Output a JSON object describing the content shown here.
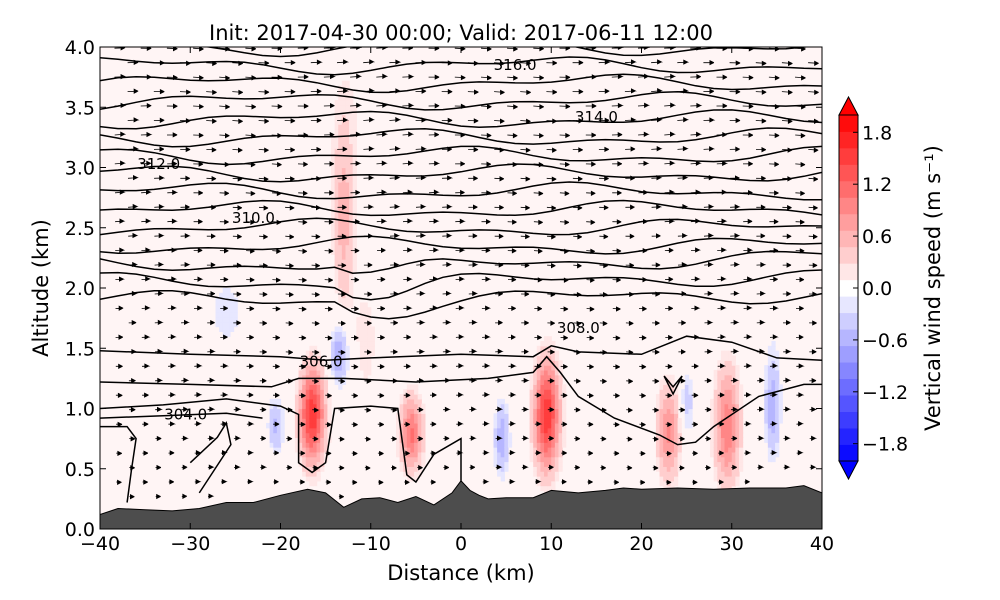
{
  "chart_data": {
    "type": "heatmap",
    "title": "Init: 2017-04-30 00:00; Valid: 2017-06-11 12:00",
    "xlabel": "Distance (km)",
    "ylabel": "Altitude (km)",
    "xlim": [
      -40,
      40
    ],
    "ylim": [
      0.0,
      4.0
    ],
    "xticks": [
      -40,
      -30,
      -20,
      -10,
      0,
      10,
      20,
      30,
      40
    ],
    "xtick_labels": [
      "−40",
      "−30",
      "−20",
      "−10",
      "0",
      "10",
      "20",
      "30",
      "40"
    ],
    "yticks": [
      0.0,
      0.5,
      1.0,
      1.5,
      2.0,
      2.5,
      3.0,
      3.5,
      4.0
    ],
    "ytick_labels": [
      "0.0",
      "0.5",
      "1.0",
      "1.5",
      "2.0",
      "2.5",
      "3.0",
      "3.5",
      "4.0"
    ],
    "colorbar": {
      "label": "Vertical wind speed (m s⁻¹)",
      "range": [
        -2.0,
        2.0
      ],
      "ticks": [
        1.8,
        1.2,
        0.6,
        0.0,
        -0.6,
        -1.2,
        -1.8
      ],
      "tick_labels": [
        "1.8",
        "1.2",
        "0.6",
        "0.0",
        "−0.6",
        "−1.2",
        "−1.8"
      ],
      "colormap": "bwr",
      "extend": "both"
    },
    "terrain": {
      "color": "#4d4d4d",
      "x": [
        -40,
        -38,
        -35,
        -32,
        -29,
        -26,
        -23,
        -20,
        -17,
        -15,
        -13,
        -11,
        -9,
        -7,
        -5,
        -3,
        -1,
        0,
        1,
        2,
        3,
        5,
        8,
        10,
        13,
        16,
        18,
        20,
        24,
        28,
        32,
        36,
        38,
        40
      ],
      "y": [
        0.12,
        0.17,
        0.16,
        0.15,
        0.17,
        0.22,
        0.22,
        0.28,
        0.33,
        0.3,
        0.18,
        0.25,
        0.26,
        0.22,
        0.27,
        0.2,
        0.3,
        0.4,
        0.32,
        0.28,
        0.25,
        0.26,
        0.26,
        0.32,
        0.3,
        0.32,
        0.34,
        0.33,
        0.34,
        0.33,
        0.34,
        0.34,
        0.36,
        0.3
      ]
    },
    "theta_contours": [
      {
        "level": 304.0,
        "label": "304.0",
        "label_x": -30.5,
        "label_y": 0.95
      },
      {
        "level": 306.0,
        "label": "306.0",
        "label_x": -15.5,
        "label_y": 1.39
      },
      {
        "level": 308.0,
        "label": "308.0",
        "label_x": 13,
        "label_y": 1.67
      },
      {
        "level": 310.0,
        "label": "310.0",
        "label_x": -23,
        "label_y": 2.58
      },
      {
        "level": 312.0,
        "label": "312.0",
        "label_x": -33.5,
        "label_y": 3.03
      },
      {
        "level": 314.0,
        "label": "314.0",
        "label_x": 15,
        "label_y": 3.42
      },
      {
        "level": 316.0,
        "label": "316.0",
        "label_x": 6,
        "label_y": 3.85
      }
    ],
    "w_features": [
      {
        "x": -16.5,
        "z": 0.95,
        "w": 1.6,
        "sx": 1.0,
        "sz": 0.28
      },
      {
        "x": -5.5,
        "z": 0.8,
        "w": 1.1,
        "sx": 0.9,
        "sz": 0.22
      },
      {
        "x": 9.5,
        "z": 0.95,
        "w": 1.6,
        "sx": 1.0,
        "sz": 0.32
      },
      {
        "x": 23,
        "z": 0.8,
        "w": 0.9,
        "sx": 0.9,
        "sz": 0.28
      },
      {
        "x": 29.5,
        "z": 0.85,
        "w": 1.0,
        "sx": 1.0,
        "sz": 0.35
      },
      {
        "x": -13,
        "z": 2.55,
        "w": 0.6,
        "sx": 0.9,
        "sz": 0.55
      },
      {
        "x": -10.5,
        "z": 1.6,
        "w": 0.3,
        "sx": 1.0,
        "sz": 0.4
      },
      {
        "x": -13.5,
        "z": 1.45,
        "w": -0.7,
        "sx": 0.7,
        "sz": 0.18
      },
      {
        "x": -20.5,
        "z": 0.85,
        "w": -0.5,
        "sx": 0.6,
        "sz": 0.16
      },
      {
        "x": 4.5,
        "z": 0.75,
        "w": -0.6,
        "sx": 0.6,
        "sz": 0.22
      },
      {
        "x": 34.5,
        "z": 1.0,
        "w": -0.6,
        "sx": 0.6,
        "sz": 0.3
      },
      {
        "x": 25,
        "z": 1.05,
        "w": -0.4,
        "sx": 0.6,
        "sz": 0.22
      },
      {
        "x": -26,
        "z": 1.8,
        "w": -0.2,
        "sx": 4.0,
        "sz": 0.6
      },
      {
        "x": 0,
        "z": 2.3,
        "w": -0.15,
        "sx": 8.0,
        "sz": 0.6
      },
      {
        "x": 20,
        "z": 3.2,
        "w": 0.15,
        "sx": 10.0,
        "sz": 0.8
      },
      {
        "x": -36,
        "z": 3.6,
        "w": -0.15,
        "sx": 3.0,
        "sz": 0.5
      },
      {
        "x": 36,
        "z": 2.3,
        "w": -0.2,
        "sx": 3.0,
        "sz": 0.6
      },
      {
        "x": -10,
        "z": 3.6,
        "w": 0.15,
        "sx": 6.0,
        "sz": 0.5
      }
    ]
  }
}
